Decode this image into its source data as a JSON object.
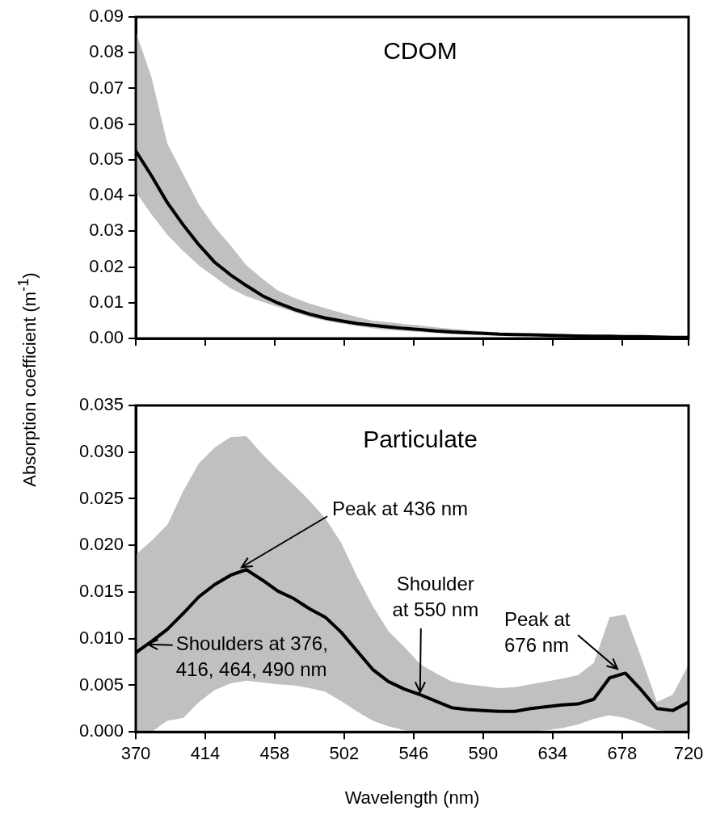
{
  "chart_data": [
    {
      "type": "line",
      "title": "CDOM",
      "ylabel": "Absorption coefficient (m$^{-1}$)",
      "x": [
        370,
        380,
        390,
        400,
        410,
        420,
        430,
        440,
        450,
        460,
        470,
        480,
        490,
        500,
        510,
        520,
        530,
        540,
        550,
        560,
        570,
        580,
        590,
        600,
        610,
        620,
        630,
        640,
        650,
        660,
        670,
        680,
        690,
        700,
        710,
        720
      ],
      "series": [
        {
          "color": "#000000",
          "values": [
            0.0525,
            0.0455,
            0.038,
            0.0318,
            0.0262,
            0.0213,
            0.0178,
            0.0148,
            0.012,
            0.0099,
            0.0082,
            0.0068,
            0.0057,
            0.0049,
            0.0042,
            0.0037,
            0.0032,
            0.0028,
            0.0025,
            0.0021,
            0.0018,
            0.0016,
            0.0014,
            0.0012,
            0.0011,
            0.001,
            0.0009,
            0.0008,
            0.0007,
            0.0006,
            0.0006,
            0.0005,
            0.0005,
            0.0004,
            0.0003,
            0.0003
          ],
          "upper": [
            0.086,
            0.073,
            0.0545,
            0.046,
            0.0375,
            0.0312,
            0.026,
            0.0205,
            0.0168,
            0.0134,
            0.0114,
            0.0098,
            0.0085,
            0.0072,
            0.006,
            0.005,
            0.0045,
            0.004,
            0.0036,
            0.0031,
            0.0027,
            0.0023,
            0.002,
            0.0017,
            0.0015,
            0.0013,
            0.0012,
            0.0011,
            0.001,
            0.0009,
            0.0008,
            0.0007,
            0.0007,
            0.0006,
            0.0005,
            0.0005
          ],
          "lower": [
            0.041,
            0.0347,
            0.029,
            0.0245,
            0.0204,
            0.0172,
            0.014,
            0.0118,
            0.0103,
            0.0088,
            0.0074,
            0.006,
            0.005,
            0.0042,
            0.0035,
            0.0028,
            0.0024,
            0.0021,
            0.0018,
            0.0015,
            0.0012,
            0.0011,
            0.001,
            0.0009,
            0.0008,
            0.0007,
            0.0006,
            0.0005,
            0.0005,
            0.0004,
            0.0004,
            0.0003,
            0.0003,
            0.0002,
            0.0002,
            0.0001
          ]
        }
      ],
      "xlim": [
        370,
        720
      ],
      "xticks": [
        370,
        414,
        458,
        502,
        546,
        590,
        634,
        678,
        720
      ],
      "ylim": [
        0,
        0.09
      ],
      "yticks": [
        {
          "value": 0,
          "label": "0.00"
        },
        {
          "value": 0.01,
          "label": "0.01"
        },
        {
          "value": 0.02,
          "label": "0.02"
        },
        {
          "value": 0.03,
          "label": "0.03"
        },
        {
          "value": 0.04,
          "label": "0.04"
        },
        {
          "value": 0.05,
          "label": "0.05"
        },
        {
          "value": 0.06,
          "label": "0.06"
        },
        {
          "value": 0.07,
          "label": "0.07"
        },
        {
          "value": 0.08,
          "label": "0.08"
        },
        {
          "value": 0.09,
          "label": "0.09"
        }
      ],
      "tick_labels": "y"
    },
    {
      "type": "line",
      "title": "Particulate",
      "xlabel": "Wavelength (nm)",
      "x": [
        370,
        380,
        390,
        400,
        410,
        420,
        430,
        440,
        450,
        460,
        470,
        480,
        490,
        500,
        510,
        520,
        530,
        540,
        550,
        560,
        570,
        580,
        590,
        600,
        610,
        620,
        630,
        640,
        650,
        660,
        670,
        680,
        690,
        700,
        710,
        720
      ],
      "series": [
        {
          "color": "#000000",
          "values": [
            0.0085,
            0.0097,
            0.011,
            0.0127,
            0.0145,
            0.0158,
            0.0168,
            0.0174,
            0.0163,
            0.0151,
            0.0143,
            0.0132,
            0.0123,
            0.0107,
            0.0087,
            0.0067,
            0.0054,
            0.0046,
            0.004,
            0.0033,
            0.0026,
            0.0024,
            0.0023,
            0.0022,
            0.0022,
            0.0025,
            0.0027,
            0.0029,
            0.003,
            0.0035,
            0.0058,
            0.0063,
            0.0045,
            0.0025,
            0.0023,
            0.0032
          ],
          "upper": [
            0.019,
            0.0205,
            0.0222,
            0.0258,
            0.0288,
            0.0305,
            0.0316,
            0.0317,
            0.0298,
            0.0281,
            0.0265,
            0.0248,
            0.0229,
            0.0203,
            0.0167,
            0.0135,
            0.0108,
            0.0091,
            0.0073,
            0.0063,
            0.0054,
            0.0051,
            0.0049,
            0.0047,
            0.0048,
            0.0051,
            0.0054,
            0.0057,
            0.0061,
            0.0074,
            0.0123,
            0.0126,
            0.008,
            0.0032,
            0.004,
            0.0072
          ],
          "lower": [
            0,
            0,
            0.0012,
            0.0015,
            0.0032,
            0.0045,
            0.0052,
            0.0055,
            0.0053,
            0.0051,
            0.005,
            0.0047,
            0.0043,
            0.0033,
            0.0022,
            0.0012,
            0.0006,
            0.0002,
            0,
            0,
            0,
            0,
            0,
            0,
            0,
            0,
            0.0002,
            0.0004,
            0.0008,
            0.0014,
            0.0018,
            0.0015,
            0.0009,
            0.0002,
            0,
            0
          ]
        }
      ],
      "xlim": [
        370,
        720
      ],
      "xticks": [
        370,
        414,
        458,
        502,
        546,
        590,
        634,
        678,
        720
      ],
      "ylim": [
        0,
        0.035
      ],
      "yticks": [
        {
          "value": 0,
          "label": "0.000"
        },
        {
          "value": 0.005,
          "label": "0.005"
        },
        {
          "value": 0.01,
          "label": "0.010"
        },
        {
          "value": 0.015,
          "label": "0.015"
        },
        {
          "value": 0.02,
          "label": "0.020"
        },
        {
          "value": 0.025,
          "label": "0.025"
        },
        {
          "value": 0.03,
          "label": "0.030"
        },
        {
          "value": 0.035,
          "label": "0.035"
        }
      ],
      "annotations": [
        {
          "text": "Peak at 436 nm",
          "x": 436,
          "y": 0.0174
        },
        {
          "text": "Shoulders at 376,\n416, 464, 490 nm",
          "x": 376,
          "y": 0.0094
        },
        {
          "text": "Shoulder\nat 550 nm",
          "x": 550,
          "y": 0.004
        },
        {
          "text": "Peak at\n676 nm",
          "x": 676,
          "y": 0.0065
        }
      ]
    }
  ]
}
